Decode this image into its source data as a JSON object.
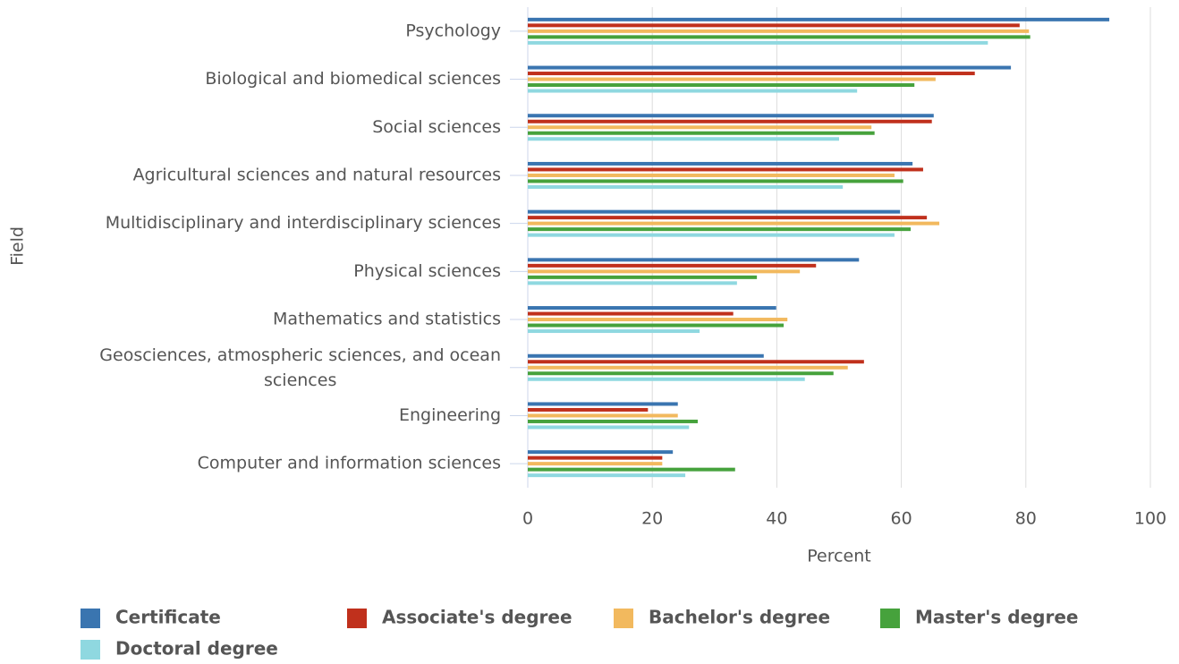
{
  "chart_data": {
    "type": "bar",
    "orientation": "horizontal",
    "x_label": "Percent",
    "y_label": "Field",
    "categories": [
      "Psychology",
      "Biological and biomedical sciences",
      "Social sciences",
      "Agricultural sciences and natural resources",
      "Multidisciplinary and interdisciplinary sciences",
      "Physical sciences",
      "Mathematics and statistics",
      "Geosciences, atmospheric sciences, and ocean sciences",
      "Engineering",
      "Computer and information sciences"
    ],
    "series": [
      {
        "name": "Certificate",
        "color": "#3a75b0",
        "values": [
          93.4,
          77.6,
          65.2,
          61.8,
          59.8,
          53.2,
          39.9,
          37.9,
          24.1,
          23.3
        ]
      },
      {
        "name": "Associate's degree",
        "color": "#c0301c",
        "values": [
          79.0,
          71.8,
          64.9,
          63.5,
          64.1,
          46.3,
          33.0,
          54.0,
          19.3,
          21.6
        ]
      },
      {
        "name": "Bachelor's degree",
        "color": "#f2b95e",
        "values": [
          80.5,
          65.5,
          55.2,
          58.9,
          66.1,
          43.7,
          41.7,
          51.4,
          24.1,
          21.6
        ]
      },
      {
        "name": "Master's degree",
        "color": "#46a23c",
        "values": [
          80.7,
          62.1,
          55.7,
          60.3,
          61.5,
          36.8,
          41.1,
          49.1,
          27.3,
          33.3
        ]
      },
      {
        "name": "Doctoral degree",
        "color": "#8fd8e0",
        "values": [
          73.9,
          52.9,
          50.0,
          50.6,
          58.9,
          33.6,
          27.6,
          44.5,
          25.9,
          25.3
        ]
      }
    ],
    "xlim": [
      0,
      100
    ],
    "xticks": [
      0,
      20,
      40,
      60,
      80,
      100
    ],
    "grid": true
  }
}
